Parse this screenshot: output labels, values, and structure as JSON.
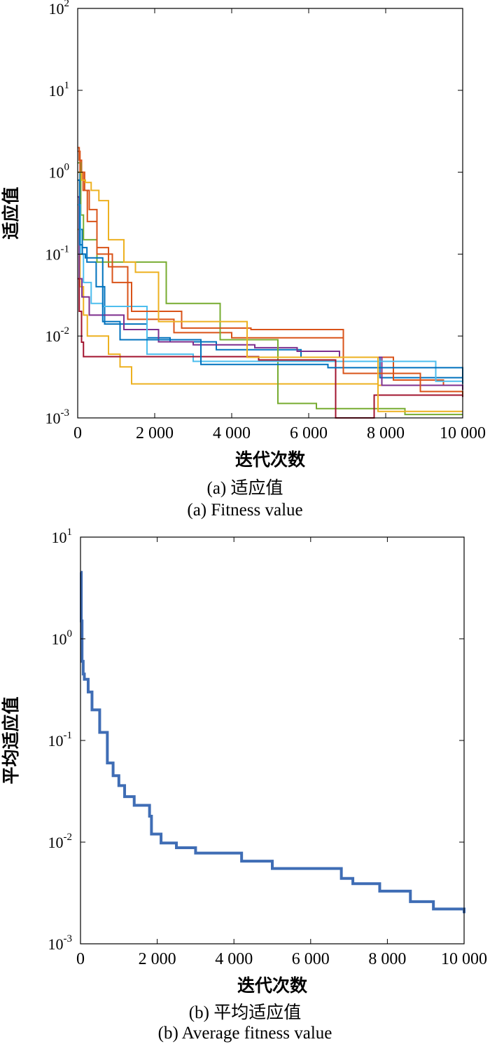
{
  "chart_data": [
    {
      "type": "line",
      "scale_y": "log",
      "xlim": [
        0,
        10000
      ],
      "ylim": [
        0.001,
        100
      ],
      "xticks": [
        {
          "value": 0,
          "label": "0"
        },
        {
          "value": 2000,
          "label": "2 000"
        },
        {
          "value": 4000,
          "label": "4 000"
        },
        {
          "value": 6000,
          "label": "6 000"
        },
        {
          "value": 8000,
          "label": "8 000"
        },
        {
          "value": 10000,
          "label": "10 000"
        }
      ],
      "yticks": [
        {
          "value": 0.001,
          "base": "10",
          "exp": "-3"
        },
        {
          "value": 0.01,
          "base": "10",
          "exp": "-2"
        },
        {
          "value": 0.1,
          "base": "10",
          "exp": "-1"
        },
        {
          "value": 1,
          "base": "10",
          "exp": "0"
        },
        {
          "value": 10,
          "base": "10",
          "exp": "1"
        },
        {
          "value": 100,
          "base": "10",
          "exp": "2"
        }
      ],
      "xlabel": "迭代次数",
      "ylabel": "适应值",
      "caption_cn": "(a) 适应值",
      "caption_en": "(a) Fitness value",
      "series": [
        {
          "color": "#0072BD",
          "x": [
            0,
            60,
            120,
            240,
            480,
            700,
            1800,
            2400,
            3600,
            5800,
            7850,
            10000
          ],
          "y": [
            1.0,
            0.2,
            0.12,
            0.08,
            0.04,
            0.014,
            0.0095,
            0.0085,
            0.0068,
            0.0055,
            0.0031,
            0.0029
          ]
        },
        {
          "color": "#D95319",
          "x": [
            0,
            40,
            100,
            180,
            300,
            500,
            800,
            1300,
            2500,
            4000,
            6900,
            8200,
            9500,
            10000
          ],
          "y": [
            2.0,
            1.4,
            1.0,
            0.6,
            0.35,
            0.12,
            0.07,
            0.016,
            0.011,
            0.0095,
            0.0055,
            0.0029,
            0.0025,
            0.0024
          ]
        },
        {
          "color": "#EDB120",
          "x": [
            0,
            60,
            150,
            250,
            800,
            1100,
            1400,
            2000,
            5300,
            7800,
            9100,
            10000
          ],
          "y": [
            0.2,
            0.04,
            0.018,
            0.01,
            0.006,
            0.0042,
            0.0026,
            0.0026,
            0.0026,
            0.0025,
            0.0025,
            0.0024
          ]
        },
        {
          "color": "#7E2F8E",
          "x": [
            0,
            40,
            110,
            300,
            1200,
            2100,
            3000,
            4600,
            5700,
            6800,
            7900,
            10000
          ],
          "y": [
            0.5,
            0.05,
            0.03,
            0.018,
            0.012,
            0.0085,
            0.0078,
            0.0072,
            0.0065,
            0.0055,
            0.0025,
            0.0022
          ]
        },
        {
          "color": "#77AC30",
          "x": [
            0,
            80,
            150,
            500,
            1100,
            1400,
            1850,
            2300,
            3700,
            5200,
            6200,
            8500,
            10000
          ],
          "y": [
            1.3,
            0.3,
            0.15,
            0.08,
            0.08,
            0.08,
            0.08,
            0.025,
            0.009,
            0.0015,
            0.0013,
            0.0011,
            0.0011
          ]
        },
        {
          "color": "#4DBEEE",
          "x": [
            0,
            70,
            150,
            350,
            650,
            1800,
            3000,
            7500,
            9300,
            10000
          ],
          "y": [
            0.4,
            0.1,
            0.045,
            0.025,
            0.023,
            0.006,
            0.0049,
            0.0049,
            0.0028,
            0.0026
          ]
        },
        {
          "color": "#A2142F",
          "x": [
            0,
            40,
            100,
            150,
            550,
            1600,
            2600,
            4700,
            6700,
            7700,
            10000
          ],
          "y": [
            0.05,
            0.02,
            0.0084,
            0.0056,
            0.0056,
            0.0056,
            0.0056,
            0.0051,
            0.001,
            0.0019,
            0.0018
          ]
        },
        {
          "color": "#0072BD",
          "x": [
            0,
            50,
            120,
            200,
            650,
            1100,
            3200,
            4800,
            6500,
            10000
          ],
          "y": [
            0.8,
            0.13,
            0.1,
            0.09,
            0.015,
            0.009,
            0.0045,
            0.0045,
            0.0041,
            0.0026
          ]
        },
        {
          "color": "#D95319",
          "x": [
            0,
            60,
            140,
            250,
            500,
            900,
            1400,
            2700,
            4500,
            6900,
            8900,
            10000
          ],
          "y": [
            1.8,
            1.0,
            0.6,
            0.25,
            0.1,
            0.045,
            0.02,
            0.0125,
            0.012,
            0.0035,
            0.0021,
            0.0019
          ]
        },
        {
          "color": "#EDB120",
          "x": [
            0,
            100,
            200,
            350,
            550,
            800,
            1200,
            1500,
            2100,
            4400,
            7800,
            10000
          ],
          "y": [
            1.0,
            0.8,
            0.75,
            0.6,
            0.45,
            0.15,
            0.08,
            0.06,
            0.015,
            0.0055,
            0.0012,
            0.0012
          ]
        }
      ]
    },
    {
      "type": "line",
      "scale_y": "log",
      "xlim": [
        0,
        10000
      ],
      "ylim": [
        0.001,
        10
      ],
      "xticks": [
        {
          "value": 0,
          "label": "0"
        },
        {
          "value": 2000,
          "label": "2 000"
        },
        {
          "value": 4000,
          "label": "4 000"
        },
        {
          "value": 6000,
          "label": "6 000"
        },
        {
          "value": 8000,
          "label": "8 000"
        },
        {
          "value": 10000,
          "label": "10 000"
        }
      ],
      "yticks": [
        {
          "value": 0.001,
          "base": "10",
          "exp": "-3"
        },
        {
          "value": 0.01,
          "base": "10",
          "exp": "-2"
        },
        {
          "value": 0.1,
          "base": "10",
          "exp": "-1"
        },
        {
          "value": 1,
          "base": "10",
          "exp": "0"
        },
        {
          "value": 10,
          "base": "10",
          "exp": "1"
        }
      ],
      "xlabel": "迭代次数",
      "ylabel": "平均适应值",
      "caption_cn": "(b) 平均适应值",
      "caption_en": "(b) Average fitness value",
      "series": [
        {
          "color": "#3F6DB5",
          "x": [
            0,
            20,
            40,
            70,
            100,
            200,
            300,
            500,
            700,
            850,
            1000,
            1150,
            1400,
            1800,
            1850,
            2100,
            2500,
            3000,
            4200,
            5000,
            6800,
            7100,
            7800,
            8600,
            9200,
            10000
          ],
          "y": [
            4.5,
            1.5,
            0.6,
            0.45,
            0.4,
            0.3,
            0.2,
            0.12,
            0.06,
            0.045,
            0.036,
            0.028,
            0.023,
            0.018,
            0.012,
            0.0098,
            0.0088,
            0.0078,
            0.0065,
            0.0055,
            0.0044,
            0.0039,
            0.0033,
            0.0026,
            0.0022,
            0.002
          ]
        }
      ]
    }
  ]
}
